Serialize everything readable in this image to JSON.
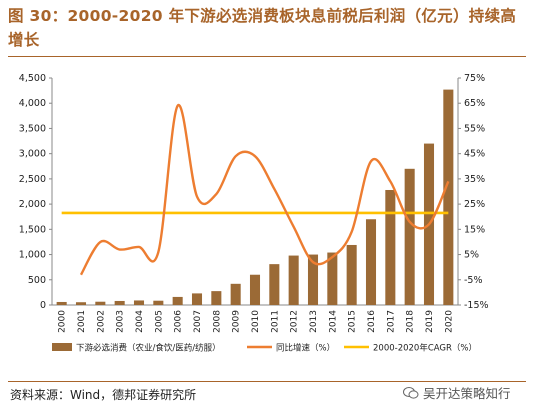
{
  "title": "图 30：2000-2020 年下游必选消费板块息前税后利润（亿元）持续高增长",
  "source": "资料来源：Wind，德邦证券研究所",
  "watermark": "吴开达策略知行",
  "colors": {
    "bar": "#9b6a36",
    "line": "#ed7d31",
    "cagr": "#ffc000",
    "title": "#a8642a"
  },
  "chart_data": {
    "type": "bar",
    "categories": [
      "2000",
      "2001",
      "2002",
      "2003",
      "2004",
      "2005",
      "2006",
      "2007",
      "2008",
      "2009",
      "2010",
      "2011",
      "2012",
      "2013",
      "2014",
      "2015",
      "2016",
      "2017",
      "2018",
      "2019",
      "2020"
    ],
    "series": [
      {
        "name": "下游必选消费（农业/食饮/医药/纺服）",
        "type": "bar",
        "axis": "left",
        "values": [
          60,
          55,
          65,
          80,
          90,
          85,
          160,
          230,
          275,
          420,
          600,
          810,
          980,
          1000,
          1040,
          1190,
          1700,
          2280,
          2700,
          3200,
          4270
        ]
      },
      {
        "name": "同比增速（%）",
        "type": "line",
        "axis": "right",
        "values": [
          null,
          -3,
          10,
          7,
          8,
          6,
          64,
          28,
          29,
          44,
          44,
          31,
          16,
          2,
          4,
          14,
          42,
          34,
          18,
          17,
          34
        ]
      },
      {
        "name": "2000-2020年CAGR（%）",
        "type": "line",
        "axis": "right",
        "values": [
          21.5,
          21.5,
          21.5,
          21.5,
          21.5,
          21.5,
          21.5,
          21.5,
          21.5,
          21.5,
          21.5,
          21.5,
          21.5,
          21.5,
          21.5,
          21.5,
          21.5,
          21.5,
          21.5,
          21.5,
          21.5
        ]
      }
    ],
    "y_left": {
      "ylim": [
        0,
        4500
      ],
      "ticks": [
        0,
        500,
        1000,
        1500,
        2000,
        2500,
        3000,
        3500,
        4000,
        4500
      ],
      "tick_labels": [
        "0",
        "500",
        "1,000",
        "1,500",
        "2,000",
        "2,500",
        "3,000",
        "3,500",
        "4,000",
        "4,500"
      ]
    },
    "y_right": {
      "ylim": [
        -15,
        75
      ],
      "ticks": [
        -15,
        -5,
        5,
        15,
        25,
        35,
        45,
        55,
        65,
        75
      ],
      "tick_labels": [
        "-15%",
        "-5%",
        "5%",
        "15%",
        "25%",
        "35%",
        "45%",
        "55%",
        "65%",
        "75%"
      ]
    },
    "grid": false,
    "legend_position": "bottom"
  }
}
